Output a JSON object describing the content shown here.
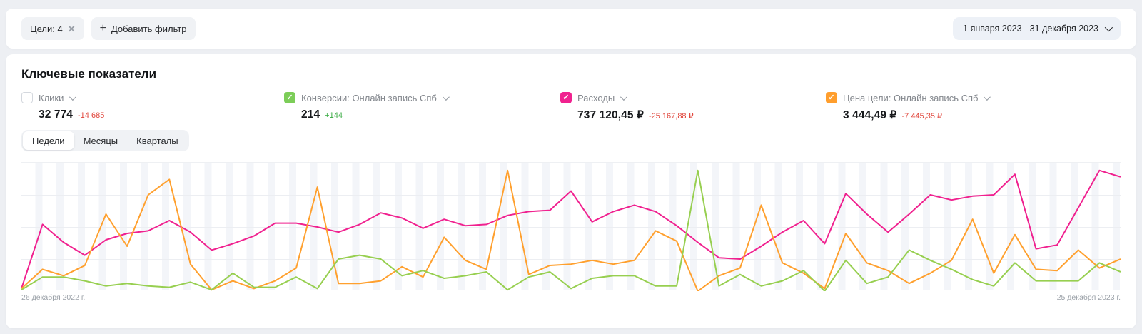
{
  "filter_bar": {
    "goal_chip": {
      "label": "Цели: 4",
      "close_icon": "✕"
    },
    "add_filter": {
      "plus_icon": "+",
      "label": "Добавить фильтр"
    },
    "date_range": {
      "label": "1 января 2023 - 31 декабря 2023"
    }
  },
  "main": {
    "title": "Ключевые показатели",
    "metrics": [
      {
        "label": "Клики",
        "value": "32 774",
        "delta": "-14 685",
        "delta_color": "#e0443a",
        "checked": false,
        "color": ""
      },
      {
        "label": "Конверсии: Онлайн запись Спб",
        "value": "214",
        "delta": "+144",
        "delta_color": "#36a93f",
        "checked": true,
        "color": "#7ccd58"
      },
      {
        "label": "Расходы",
        "value": "737 120,45 ₽",
        "delta": "-25 167,88 ₽",
        "delta_color": "#e0443a",
        "checked": true,
        "color": "#f0218f"
      },
      {
        "label": "Цена цели: Онлайн запись Спб",
        "value": "3 444,49 ₽",
        "delta": "-7 445,35 ₽",
        "delta_color": "#e0443a",
        "checked": true,
        "color": "#ff9e2d"
      }
    ],
    "tabs": [
      {
        "label": "Недели",
        "active": true
      },
      {
        "label": "Месяцы",
        "active": false
      },
      {
        "label": "Кварталы",
        "active": false
      }
    ],
    "chart_data": {
      "type": "line",
      "granularity": "weeks",
      "x_start_label": "26 декабря 2022 г.",
      "x_end_label": "25 декабря 2023 г.",
      "y_axis_labels": false,
      "ylim": [
        0,
        100
      ],
      "grid": true,
      "legend_position": "none (metric checkboxes above act as legend)",
      "series": [
        {
          "name": "Расходы",
          "color": "#f0218f",
          "values": [
            2,
            52,
            38,
            28,
            40,
            45,
            47,
            55,
            46,
            32,
            37,
            43,
            53,
            53,
            50,
            46,
            52,
            61,
            57,
            49,
            56,
            51,
            52,
            59,
            62,
            63,
            78,
            54,
            62,
            67,
            62,
            51,
            38,
            26,
            25,
            35,
            46,
            55,
            37,
            76,
            60,
            46,
            60,
            75,
            71,
            74,
            75,
            91,
            33,
            36,
            65,
            94,
            89
          ]
        },
        {
          "name": "Цена цели: Онлайн запись Спб",
          "color": "#ffa02e",
          "values": [
            2,
            17,
            12,
            20,
            60,
            35,
            75,
            87,
            21,
            1,
            8,
            2,
            8,
            18,
            81,
            6,
            6,
            8,
            19,
            11,
            42,
            24,
            17,
            94,
            13,
            20,
            21,
            24,
            21,
            24,
            47,
            39,
            0,
            12,
            18,
            67,
            22,
            14,
            2,
            45,
            22,
            16,
            6,
            14,
            24,
            56,
            14,
            44,
            17,
            16,
            32,
            18,
            25
          ]
        },
        {
          "name": "Конверсии: Онлайн запись Спб",
          "color": "#97cf50",
          "values": [
            1,
            11,
            11,
            8,
            4,
            6,
            4,
            3,
            7,
            1,
            14,
            3,
            3,
            11,
            2,
            25,
            28,
            25,
            12,
            16,
            10,
            12,
            15,
            1,
            11,
            15,
            2,
            10,
            12,
            12,
            4,
            4,
            94,
            4,
            13,
            4,
            8,
            16,
            0,
            24,
            6,
            11,
            32,
            24,
            17,
            9,
            4,
            22,
            8,
            8,
            8,
            22,
            15
          ]
        }
      ]
    }
  }
}
